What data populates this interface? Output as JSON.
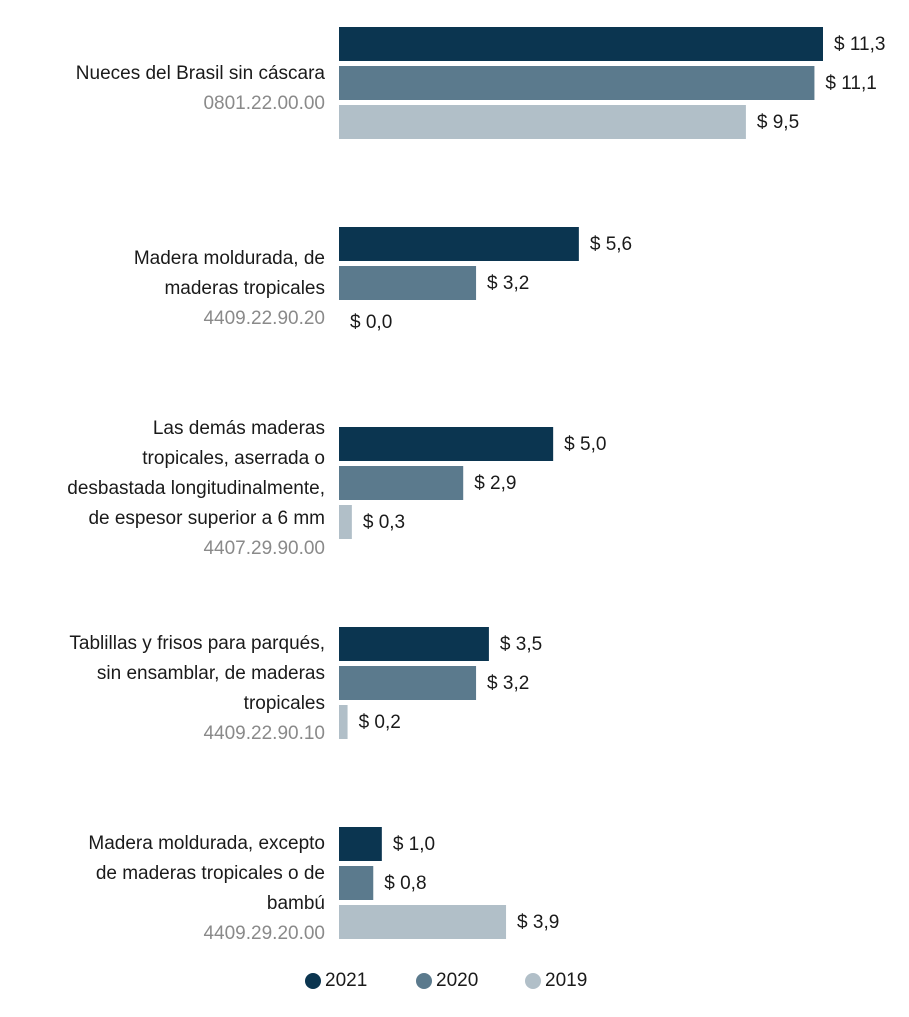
{
  "chart_data": {
    "type": "bar",
    "orientation": "horizontal",
    "categories": [
      {
        "lines": [
          "Nueces del Brasil sin cáscara"
        ],
        "code": "0801.22.00.00"
      },
      {
        "lines": [
          "Madera moldurada, de",
          "maderas tropicales"
        ],
        "code": "4409.22.90.20"
      },
      {
        "lines": [
          "Las demás maderas",
          "tropicales, aserrada o",
          "desbastada longitudinalmente,",
          "de espesor superior a 6 mm"
        ],
        "code": "4407.29.90.00"
      },
      {
        "lines": [
          "Tablillas y frisos para parqués,",
          "sin ensamblar, de maderas",
          "tropicales"
        ],
        "code": "4409.22.90.10"
      },
      {
        "lines": [
          "Madera moldurada, excepto",
          "de maderas tropicales o de",
          "bambú"
        ],
        "code": "4409.29.20.00"
      }
    ],
    "series": [
      {
        "name": "2021",
        "color": "#0b3550",
        "values": [
          11.3,
          5.6,
          5.0,
          3.5,
          1.0
        ],
        "value_labels": [
          "$ 11,3",
          "$ 5,6",
          "$ 5,0",
          "$ 3,5",
          "$ 1,0"
        ]
      },
      {
        "name": "2020",
        "color": "#5b7a8d",
        "values": [
          11.1,
          3.2,
          2.9,
          3.2,
          0.8
        ],
        "value_labels": [
          "$ 11,1",
          "$ 3,2",
          "$ 2,9",
          "$ 3,2",
          "$ 0,8"
        ]
      },
      {
        "name": "2019",
        "color": "#b1bfc8",
        "values": [
          9.5,
          0.0,
          0.3,
          0.2,
          3.9
        ],
        "value_labels": [
          "$ 9,5",
          "$ 0,0",
          "$ 0,3",
          "$ 0,2",
          "$ 3,9"
        ]
      }
    ],
    "legend": "bottom"
  }
}
